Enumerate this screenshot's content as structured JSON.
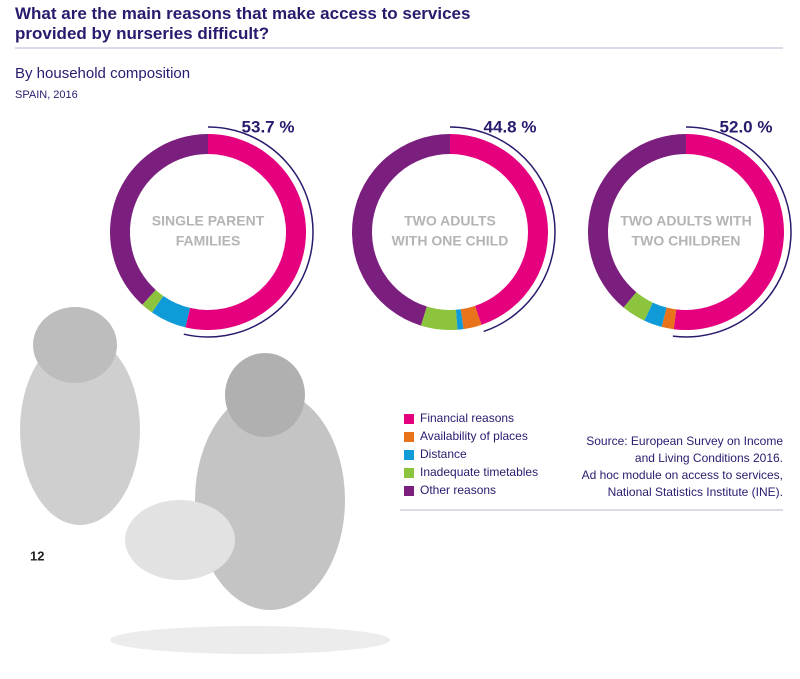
{
  "title": "What are the main reasons that make access to services provided by nurseries difficult?",
  "subtitle": "By household composition",
  "region_year": "SPAIN, 2016",
  "source": [
    "Source: European Survey on Income",
    "and Living Conditions 2016.",
    "Ad hoc module on access to services,",
    "National Statistics Institute (INE)."
  ],
  "page_number": "12",
  "chart_data": [
    {
      "type": "donut",
      "label": [
        "SINGLE PARENT",
        "FAMILIES"
      ],
      "categories": [
        "Financial reasons",
        "Availability of places",
        "Distance",
        "Inadequate timetables",
        "Other reasons"
      ],
      "colors": [
        "#e5007e",
        "#e8731a",
        "#0f9ad8",
        "#8cc43e",
        "#7b1f7f"
      ],
      "values": [
        53.7,
        0,
        6,
        2,
        38.3
      ],
      "value_labels": [
        "53.7 %",
        null,
        null,
        null,
        null
      ]
    },
    {
      "type": "donut",
      "label": [
        "TWO ADULTS",
        "WITH ONE CHILD"
      ],
      "categories": [
        "Financial reasons",
        "Availability of places",
        "Distance",
        "Inadequate timetables",
        "Other reasons"
      ],
      "colors": [
        "#e5007e",
        "#e8731a",
        "#0f9ad8",
        "#8cc43e",
        "#7b1f7f"
      ],
      "values": [
        44.8,
        3,
        1,
        6,
        45.2
      ],
      "value_labels": [
        "44.8 %",
        null,
        null,
        null,
        null
      ]
    },
    {
      "type": "donut",
      "label": [
        "TWO ADULTS WITH",
        "TWO CHILDREN"
      ],
      "categories": [
        "Financial reasons",
        "Availability of places",
        "Distance",
        "Inadequate timetables",
        "Other reasons"
      ],
      "colors": [
        "#e5007e",
        "#e8731a",
        "#0f9ad8",
        "#8cc43e",
        "#7b1f7f"
      ],
      "values": [
        52.0,
        2,
        3,
        4,
        39
      ],
      "value_labels": [
        "52.0 %",
        null,
        null,
        null,
        null
      ]
    }
  ]
}
